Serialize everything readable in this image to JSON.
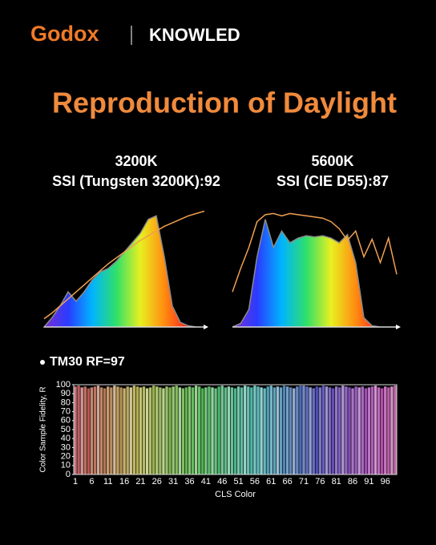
{
  "header": {
    "brand": "Godox",
    "partner": "KNOWLED",
    "title": "Reproduction of Daylight"
  },
  "chart_data": [
    {
      "type": "area",
      "title": "3200K",
      "subtitle": "SSI (Tungsten 3200K):92",
      "ylim": [
        0,
        100
      ],
      "series": [
        {
          "type": "area",
          "color": "#8a8a8a",
          "values": [
            0,
            8,
            18,
            30,
            22,
            30,
            40,
            47,
            50,
            56,
            64,
            72,
            80,
            92,
            95,
            60,
            18,
            4,
            1,
            0,
            0
          ]
        },
        {
          "type": "line",
          "color": "#f0a050",
          "values": [
            7,
            12,
            18,
            24,
            30,
            36,
            42,
            48,
            54,
            59,
            64,
            69,
            74,
            78,
            82,
            86,
            89,
            92,
            95,
            97,
            99
          ]
        }
      ]
    },
    {
      "type": "area",
      "title": "5600K",
      "subtitle": "SSI (CIE D55):87",
      "ylim": [
        0,
        100
      ],
      "series": [
        {
          "type": "area",
          "color": "#8a8a8a",
          "values": [
            0,
            3,
            15,
            60,
            92,
            68,
            82,
            72,
            76,
            78,
            77,
            78,
            76,
            72,
            79,
            55,
            8,
            1,
            0,
            0,
            0
          ]
        },
        {
          "type": "line",
          "color": "#f0a050",
          "values": [
            30,
            50,
            68,
            90,
            96,
            97,
            95,
            97,
            96,
            95,
            94,
            93,
            90,
            84,
            74,
            82,
            60,
            75,
            55,
            76,
            45
          ]
        }
      ]
    },
    {
      "type": "bar",
      "title": "TM30 RF=97",
      "xlabel": "CLS Color",
      "ylabel": "Color Sample Fidelity, R",
      "ylim": [
        0,
        100
      ],
      "yticks": [
        0,
        10,
        20,
        30,
        40,
        50,
        60,
        70,
        80,
        90,
        100
      ],
      "categories": [
        1,
        null,
        null,
        null,
        null,
        6,
        null,
        null,
        null,
        null,
        11,
        null,
        null,
        null,
        null,
        16,
        null,
        null,
        null,
        null,
        21,
        null,
        null,
        null,
        null,
        26,
        null,
        null,
        null,
        null,
        31,
        null,
        null,
        null,
        null,
        36,
        null,
        null,
        null,
        null,
        41,
        null,
        null,
        null,
        null,
        46,
        null,
        null,
        null,
        null,
        51,
        null,
        null,
        null,
        null,
        56,
        null,
        null,
        null,
        null,
        61,
        null,
        null,
        null,
        null,
        66,
        null,
        null,
        null,
        null,
        71,
        null,
        null,
        null,
        null,
        76,
        null,
        null,
        null,
        null,
        81,
        null,
        null,
        null,
        null,
        86,
        null,
        null,
        null,
        null,
        91,
        null,
        null,
        null,
        null,
        96,
        null,
        null,
        null
      ],
      "values": [
        98,
        99,
        97,
        98,
        96,
        97,
        98,
        99,
        97,
        96,
        98,
        97,
        99,
        98,
        97,
        96,
        98,
        97,
        99,
        98,
        97,
        98,
        96,
        97,
        99,
        98,
        97,
        96,
        98,
        97,
        98,
        99,
        97,
        96,
        97,
        98,
        97,
        99,
        98,
        96,
        97,
        98,
        97,
        96,
        98,
        99,
        97,
        98,
        97,
        96,
        98,
        97,
        99,
        98,
        97,
        99,
        98,
        97,
        96,
        98,
        99,
        97,
        98,
        97,
        99,
        98,
        97,
        96,
        98,
        99,
        99,
        98,
        97,
        96,
        98,
        97,
        99,
        98,
        97,
        96,
        98,
        97,
        99,
        98,
        97,
        96,
        98,
        97,
        98,
        96,
        97,
        98,
        99,
        97,
        96,
        98,
        97,
        98,
        99
      ],
      "colors": [
        "hsl(355,40%,62%)",
        "hsl(358,40%,55%)",
        "hsl(2,40%,70%)",
        "hsl(5,40%,58%)",
        "hsl(8,40%,50%)",
        "hsl(12,40%,62%)",
        "hsl(15,40%,55%)",
        "hsl(18,40%,70%)",
        "hsl(21,40%,58%)",
        "hsl(25,40%,50%)",
        "hsl(28,40%,62%)",
        "hsl(31,40%,55%)",
        "hsl(35,40%,70%)",
        "hsl(38,40%,58%)",
        "hsl(41,40%,50%)",
        "hsl(45,40%,62%)",
        "hsl(48,40%,55%)",
        "hsl(51,40%,70%)",
        "hsl(54,40%,58%)",
        "hsl(58,40%,50%)",
        "hsl(61,40%,62%)",
        "hsl(64,40%,55%)",
        "hsl(68,40%,70%)",
        "hsl(71,40%,58%)",
        "hsl(74,40%,50%)",
        "hsl(78,40%,62%)",
        "hsl(81,40%,55%)",
        "hsl(84,40%,70%)",
        "hsl(87,40%,58%)",
        "hsl(91,40%,50%)",
        "hsl(94,40%,62%)",
        "hsl(97,40%,55%)",
        "hsl(101,40%,70%)",
        "hsl(104,40%,58%)",
        "hsl(107,40%,50%)",
        "hsl(111,40%,62%)",
        "hsl(114,40%,55%)",
        "hsl(117,40%,70%)",
        "hsl(120,40%,58%)",
        "hsl(124,40%,50%)",
        "hsl(127,40%,62%)",
        "hsl(130,40%,55%)",
        "hsl(134,40%,70%)",
        "hsl(137,40%,58%)",
        "hsl(140,40%,50%)",
        "hsl(144,40%,62%)",
        "hsl(147,40%,55%)",
        "hsl(150,40%,70%)",
        "hsl(153,40%,58%)",
        "hsl(157,40%,50%)",
        "hsl(160,40%,62%)",
        "hsl(163,40%,55%)",
        "hsl(167,40%,70%)",
        "hsl(170,40%,58%)",
        "hsl(173,40%,50%)",
        "hsl(177,40%,62%)",
        "hsl(180,40%,55%)",
        "hsl(183,40%,70%)",
        "hsl(186,40%,58%)",
        "hsl(190,40%,50%)",
        "hsl(193,40%,62%)",
        "hsl(196,40%,55%)",
        "hsl(200,40%,70%)",
        "hsl(203,40%,58%)",
        "hsl(206,40%,50%)",
        "hsl(210,40%,62%)",
        "hsl(213,40%,55%)",
        "hsl(216,40%,70%)",
        "hsl(219,40%,58%)",
        "hsl(223,40%,50%)",
        "hsl(226,40%,62%)",
        "hsl(229,40%,55%)",
        "hsl(233,40%,70%)",
        "hsl(236,40%,58%)",
        "hsl(239,40%,50%)",
        "hsl(243,40%,62%)",
        "hsl(246,40%,55%)",
        "hsl(249,40%,70%)",
        "hsl(252,40%,58%)",
        "hsl(256,40%,50%)",
        "hsl(259,40%,62%)",
        "hsl(262,40%,55%)",
        "hsl(266,40%,70%)",
        "hsl(269,40%,58%)",
        "hsl(272,40%,50%)",
        "hsl(276,40%,62%)",
        "hsl(279,40%,55%)",
        "hsl(282,40%,70%)",
        "hsl(285,40%,58%)",
        "hsl(289,40%,50%)",
        "hsl(292,40%,62%)",
        "hsl(295,40%,55%)",
        "hsl(299,40%,70%)",
        "hsl(302,40%,58%)",
        "hsl(305,40%,50%)",
        "hsl(309,40%,62%)",
        "hsl(312,40%,55%)",
        "hsl(315,40%,70%)",
        "hsl(318,40%,58%)"
      ]
    }
  ]
}
